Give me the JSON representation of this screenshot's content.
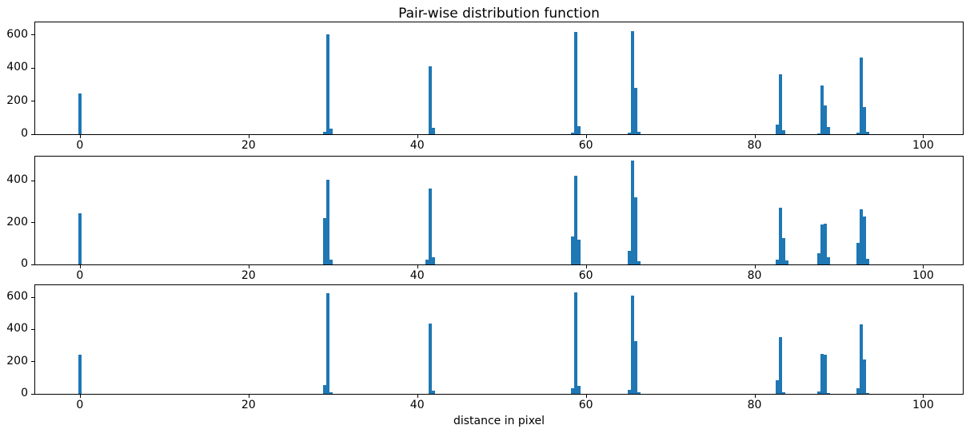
{
  "figure": {
    "title": "Pair-wise distribution function",
    "xlabel": "distance in pixel",
    "bar_color": "#1f77b4",
    "axis_color": "#000000",
    "background": "#ffffff"
  },
  "chart_data": [
    {
      "type": "bar",
      "name": "subplot-top",
      "xlim": [
        -5.3,
        104.7
      ],
      "ylim": [
        0,
        677
      ],
      "xticks": [
        0,
        20,
        40,
        60,
        80,
        100
      ],
      "yticks": [
        0,
        200,
        400,
        600
      ],
      "bar_width": 0.38,
      "grid": false,
      "x": [
        0.0,
        29.07,
        29.45,
        29.83,
        41.55,
        41.93,
        58.42,
        58.8,
        59.18,
        65.18,
        65.56,
        65.94,
        66.32,
        82.72,
        83.1,
        83.48,
        87.62,
        88.0,
        88.38,
        88.76,
        92.27,
        92.65,
        93.03,
        93.41
      ],
      "values": [
        245,
        13,
        605,
        35,
        410,
        40,
        12,
        620,
        50,
        12,
        625,
        280,
        15,
        60,
        365,
        25,
        6,
        295,
        176,
        42,
        8,
        465,
        165,
        15
      ]
    },
    {
      "type": "bar",
      "name": "subplot-middle",
      "xlim": [
        -5.3,
        104.7
      ],
      "ylim": [
        0,
        516
      ],
      "xticks": [
        0,
        20,
        40,
        60,
        80,
        100
      ],
      "yticks": [
        0,
        200,
        400
      ],
      "bar_width": 0.38,
      "grid": false,
      "x": [
        0.0,
        29.07,
        29.45,
        29.83,
        41.17,
        41.55,
        41.93,
        58.42,
        58.8,
        59.18,
        65.18,
        65.56,
        65.94,
        66.32,
        82.72,
        83.1,
        83.48,
        83.86,
        87.62,
        88.0,
        88.38,
        88.76,
        92.27,
        92.65,
        93.03,
        93.41
      ],
      "values": [
        245,
        220,
        405,
        23,
        23,
        365,
        35,
        135,
        425,
        120,
        65,
        495,
        320,
        17,
        23,
        270,
        128,
        20,
        55,
        190,
        195,
        33,
        102,
        262,
        230,
        27
      ]
    },
    {
      "type": "bar",
      "name": "subplot-bottom",
      "xlim": [
        -5.3,
        104.7
      ],
      "ylim": [
        0,
        675
      ],
      "xticks": [
        0,
        20,
        40,
        60,
        80,
        100
      ],
      "yticks": [
        0,
        200,
        400,
        600
      ],
      "bar_width": 0.38,
      "grid": false,
      "x": [
        0.0,
        29.07,
        29.45,
        29.83,
        41.55,
        41.93,
        58.42,
        58.8,
        59.18,
        65.18,
        65.56,
        65.94,
        66.32,
        82.72,
        83.1,
        83.48,
        87.62,
        88.0,
        88.38,
        88.76,
        92.27,
        92.65,
        93.03,
        93.41
      ],
      "values": [
        245,
        53,
        625,
        8,
        435,
        20,
        35,
        630,
        50,
        23,
        610,
        330,
        10,
        85,
        350,
        10,
        15,
        250,
        245,
        5,
        33,
        430,
        215,
        5
      ]
    }
  ]
}
